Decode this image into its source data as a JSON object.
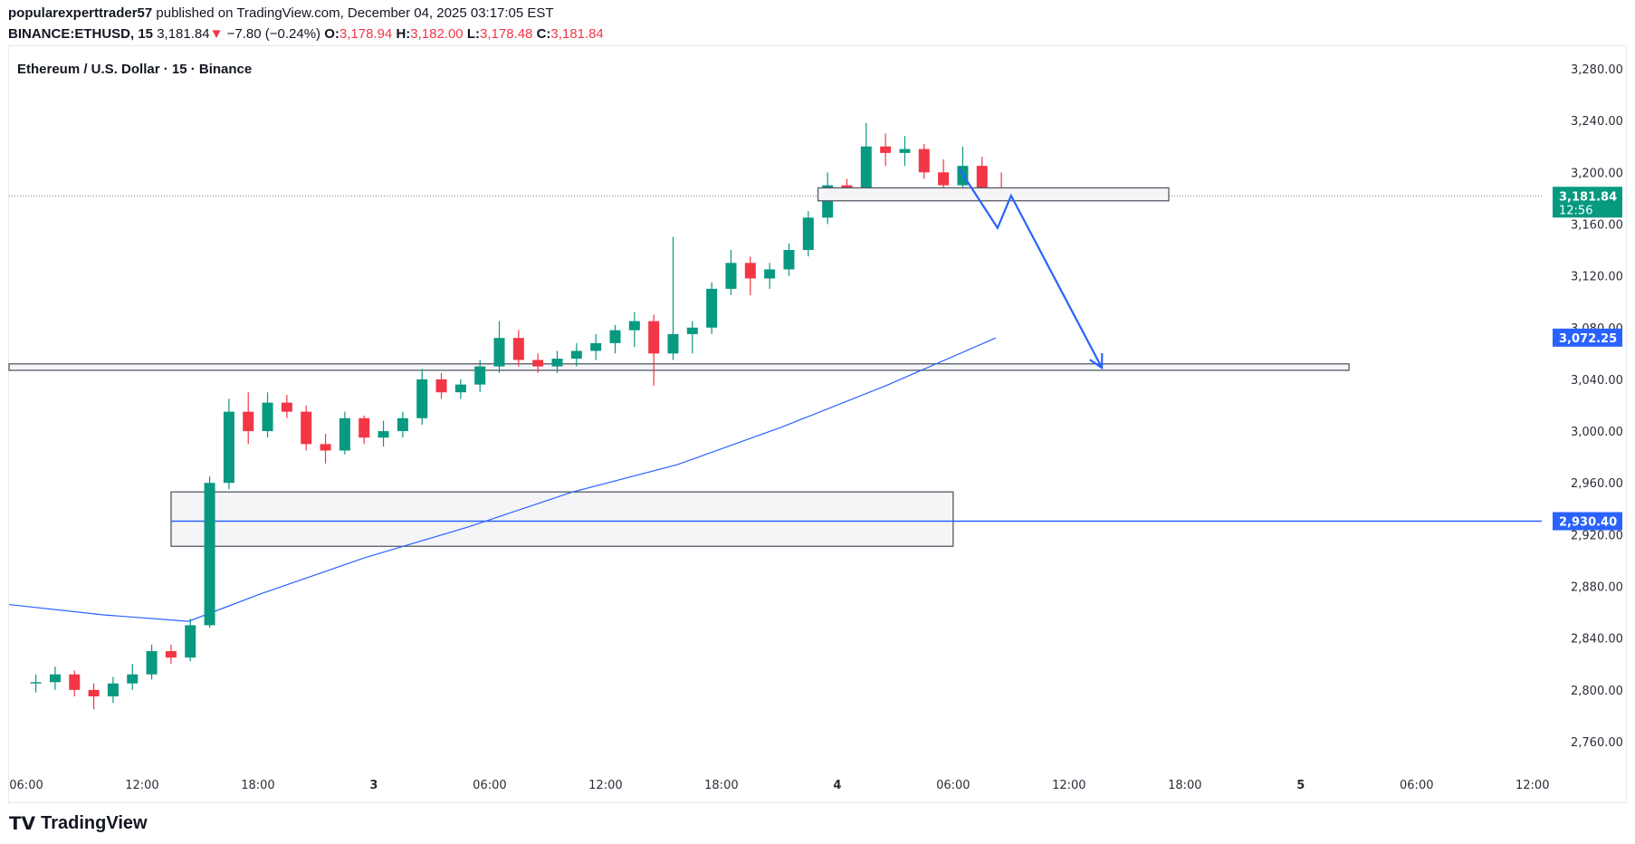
{
  "header": {
    "author": "popularexperttrader57",
    "published": "published on TradingView.com, December 04, 2025 03:17:05 EST",
    "symbol": "BINANCE:ETHUSD, 15",
    "last": "3,181.84",
    "change": "−7.80 (−0.24%)",
    "o_label": "O:",
    "o": "3,178.94",
    "h_label": "H:",
    "h": "3,182.00",
    "l_label": "L:",
    "l": "3,178.48",
    "c_label": "C:",
    "c": "3,181.84"
  },
  "chart_title": "Ethereum / U.S. Dollar · 15 · Binance",
  "logo": "TradingView",
  "colors": {
    "up": "#089981",
    "down": "#f23645",
    "ema": "#2962ff",
    "drawing": "#2962ff",
    "zone_fill": "#f5f5f7",
    "zone_border": "#555a66"
  },
  "chart_data": {
    "type": "candlestick",
    "ylim": [
      2740,
      3290
    ],
    "y_ticks": [
      "3,280.00",
      "3,240.00",
      "3,200.00",
      "3,160.00",
      "3,120.00",
      "3,080.00",
      "3,040.00",
      "3,000.00",
      "2,960.00",
      "2,920.00",
      "2,880.00",
      "2,840.00",
      "2,800.00",
      "2,760.00"
    ],
    "y_tick_values": [
      3280,
      3240,
      3200,
      3160,
      3120,
      3080,
      3040,
      3000,
      2960,
      2920,
      2880,
      2840,
      2800,
      2760
    ],
    "x_ticks": [
      {
        "label": "06:00",
        "t": "2025-12-02T06:00"
      },
      {
        "label": "12:00",
        "t": "2025-12-02T12:00"
      },
      {
        "label": "18:00",
        "t": "2025-12-02T18:00"
      },
      {
        "label": "3",
        "t": "2025-12-03T00:00"
      },
      {
        "label": "06:00",
        "t": "2025-12-03T06:00"
      },
      {
        "label": "12:00",
        "t": "2025-12-03T12:00"
      },
      {
        "label": "18:00",
        "t": "2025-12-03T18:00"
      },
      {
        "label": "4",
        "t": "2025-12-04T00:00"
      },
      {
        "label": "06:00",
        "t": "2025-12-04T06:00"
      },
      {
        "label": "12:00",
        "t": "2025-12-04T12:00"
      },
      {
        "label": "18:00",
        "t": "2025-12-04T18:00"
      },
      {
        "label": "5",
        "t": "2025-12-05T00:00"
      },
      {
        "label": "06:00",
        "t": "2025-12-05T06:00"
      },
      {
        "label": "12:00",
        "t": "2025-12-05T12:00"
      }
    ],
    "candles": {
      "start": "2025-12-02T06:00",
      "interval_minutes": 60,
      "ohlc": [
        [
          2805,
          2812,
          2798,
          2806
        ],
        [
          2806,
          2818,
          2800,
          2812
        ],
        [
          2812,
          2815,
          2795,
          2800
        ],
        [
          2800,
          2805,
          2785,
          2795
        ],
        [
          2795,
          2810,
          2790,
          2805
        ],
        [
          2805,
          2820,
          2800,
          2812
        ],
        [
          2812,
          2835,
          2808,
          2830
        ],
        [
          2830,
          2835,
          2820,
          2825
        ],
        [
          2825,
          2855,
          2822,
          2850
        ],
        [
          2850,
          2965,
          2848,
          2960
        ],
        [
          2960,
          3025,
          2955,
          3015
        ],
        [
          3015,
          3030,
          2990,
          3000
        ],
        [
          3000,
          3030,
          2995,
          3022
        ],
        [
          3022,
          3028,
          3010,
          3015
        ],
        [
          3015,
          3020,
          2985,
          2990
        ],
        [
          2990,
          2998,
          2975,
          2985
        ],
        [
          2985,
          3015,
          2982,
          3010
        ],
        [
          3010,
          3012,
          2990,
          2995
        ],
        [
          2995,
          3008,
          2988,
          3000
        ],
        [
          3000,
          3015,
          2995,
          3010
        ],
        [
          3010,
          3048,
          3005,
          3040
        ],
        [
          3040,
          3045,
          3025,
          3030
        ],
        [
          3030,
          3040,
          3025,
          3036
        ],
        [
          3036,
          3055,
          3030,
          3050
        ],
        [
          3050,
          3085,
          3045,
          3072
        ],
        [
          3072,
          3078,
          3050,
          3055
        ],
        [
          3055,
          3060,
          3045,
          3050
        ],
        [
          3050,
          3062,
          3045,
          3056
        ],
        [
          3056,
          3068,
          3050,
          3062
        ],
        [
          3062,
          3075,
          3055,
          3068
        ],
        [
          3068,
          3082,
          3060,
          3078
        ],
        [
          3078,
          3092,
          3065,
          3085
        ],
        [
          3085,
          3090,
          3035,
          3060
        ],
        [
          3060,
          3150,
          3055,
          3075
        ],
        [
          3075,
          3085,
          3060,
          3080
        ],
        [
          3080,
          3115,
          3075,
          3110
        ],
        [
          3110,
          3140,
          3105,
          3130
        ],
        [
          3130,
          3135,
          3105,
          3118
        ],
        [
          3118,
          3130,
          3110,
          3125
        ],
        [
          3125,
          3145,
          3120,
          3140
        ],
        [
          3140,
          3170,
          3135,
          3165
        ],
        [
          3165,
          3200,
          3160,
          3190
        ],
        [
          3190,
          3195,
          3178,
          3185
        ],
        [
          3185,
          3238,
          3182,
          3220
        ],
        [
          3220,
          3230,
          3205,
          3215
        ],
        [
          3215,
          3228,
          3205,
          3218
        ],
        [
          3218,
          3222,
          3195,
          3200
        ],
        [
          3200,
          3210,
          3180,
          3190
        ],
        [
          3190,
          3220,
          3178,
          3205
        ],
        [
          3205,
          3212,
          3185,
          3188
        ],
        [
          3188,
          3200,
          3178,
          3181.84
        ]
      ]
    },
    "ema": [
      [
        "2025-12-02T05:06",
        2866
      ],
      [
        "2025-12-02T10:00",
        2858
      ],
      [
        "2025-12-02T14:24",
        2853
      ],
      [
        "2025-12-02T18:06",
        2874
      ],
      [
        "2025-12-02T23:30",
        2902
      ],
      [
        "2025-12-03T04:54",
        2926
      ],
      [
        "2025-12-03T10:18",
        2953
      ],
      [
        "2025-12-03T15:42",
        2974
      ],
      [
        "2025-12-03T21:06",
        3003
      ],
      [
        "2025-12-04T02:30",
        3035
      ],
      [
        "2025-12-04T08:12",
        3072
      ]
    ],
    "last_price_label": {
      "price": "3,181.84",
      "countdown": "12:56",
      "value": 3181.84
    },
    "ema_label": {
      "price": "3,072.25",
      "value": 3072.25
    },
    "line_label": {
      "price": "2,930.40",
      "value": 2930.4
    },
    "drawings": {
      "band": {
        "from": "2025-12-02T05:00",
        "to": "2025-12-05T02:30",
        "low": 3047,
        "high": 3052
      },
      "zone": {
        "from": "2025-12-02T13:30",
        "to": "2025-12-04T06:00",
        "low": 2911,
        "high": 2953
      },
      "hline": {
        "from": "2025-12-02T13:30",
        "price": 2930.4
      },
      "small_zone": {
        "from": "2025-12-03T23:00",
        "to": "2025-12-04T17:10",
        "low": 3178,
        "high": 3188
      },
      "arrow_path": [
        [
          "2025-12-04T06:18",
          3203
        ],
        [
          "2025-12-04T08:18",
          3157
        ],
        [
          "2025-12-04T09:00",
          3182
        ],
        [
          "2025-12-04T13:42",
          3049
        ]
      ]
    }
  }
}
